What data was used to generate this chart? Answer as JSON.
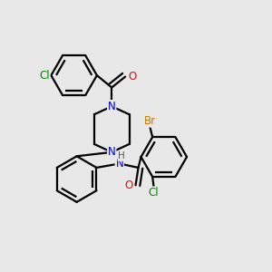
{
  "background_color": "#e8e8e8",
  "atom_colors": {
    "N": "#0000cc",
    "O": "#ff0000",
    "Cl": "#008800",
    "Br": "#cc7700",
    "H": "#555555"
  },
  "bond_color": "#000000",
  "bond_width": 1.6,
  "font_size": 8.5
}
